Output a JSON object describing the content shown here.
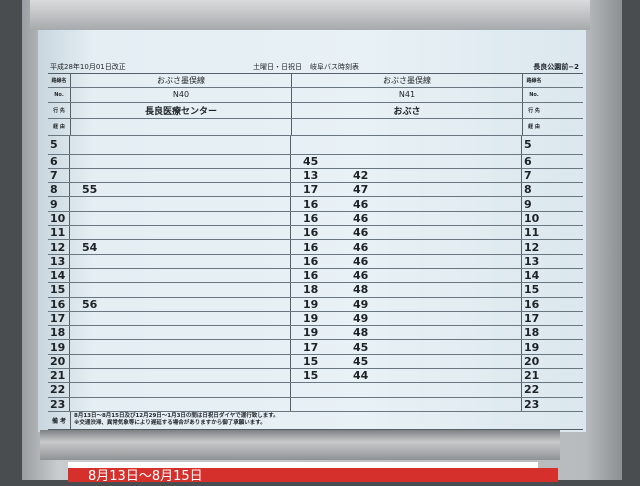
{
  "header": {
    "revision": "平成28年10月01日改正",
    "day_type": "土曜日・日祝日",
    "title": "岐阜バス時刻表",
    "stop": "長良公園前−2"
  },
  "labels": {
    "route": "路線名",
    "no": "No.",
    "dest": "行 先",
    "via": "経 由",
    "note": "備 考"
  },
  "left": {
    "route": "おぶさ墨俣線",
    "no": "N40",
    "dest": "長良医療センター"
  },
  "right": {
    "route": "おぶさ墨俣線",
    "no": "N41",
    "dest": "おぶさ"
  },
  "hours": [
    {
      "h": "5",
      "left": [],
      "right": []
    },
    {
      "h": "6",
      "left": [],
      "right": [
        "45"
      ]
    },
    {
      "h": "7",
      "left": [],
      "right": [
        "13",
        "42"
      ]
    },
    {
      "h": "8",
      "left": [
        "55"
      ],
      "right": [
        "17",
        "47"
      ]
    },
    {
      "h": "9",
      "left": [],
      "right": [
        "16",
        "46"
      ]
    },
    {
      "h": "10",
      "left": [],
      "right": [
        "16",
        "46"
      ]
    },
    {
      "h": "11",
      "left": [],
      "right": [
        "16",
        "46"
      ]
    },
    {
      "h": "12",
      "left": [
        "54"
      ],
      "right": [
        "16",
        "46"
      ]
    },
    {
      "h": "13",
      "left": [],
      "right": [
        "16",
        "46"
      ]
    },
    {
      "h": "14",
      "left": [],
      "right": [
        "16",
        "46"
      ]
    },
    {
      "h": "15",
      "left": [],
      "right": [
        "18",
        "48"
      ]
    },
    {
      "h": "16",
      "left": [
        "56"
      ],
      "right": [
        "19",
        "49"
      ]
    },
    {
      "h": "17",
      "left": [],
      "right": [
        "19",
        "49"
      ]
    },
    {
      "h": "18",
      "left": [],
      "right": [
        "19",
        "48"
      ]
    },
    {
      "h": "19",
      "left": [],
      "right": [
        "17",
        "45"
      ]
    },
    {
      "h": "20",
      "left": [],
      "right": [
        "15",
        "45"
      ]
    },
    {
      "h": "21",
      "left": [],
      "right": [
        "15",
        "44"
      ]
    },
    {
      "h": "22",
      "left": [],
      "right": []
    },
    {
      "h": "23",
      "left": [],
      "right": []
    }
  ],
  "notes": [
    "8月13日〜8月15日及び12月29日〜1月3日の間は日祝日ダイヤで運行致します。",
    "※交通渋滞、異常気象等により遅延する場合がありますから御了承願います。"
  ],
  "sign": "8月13日〜8月15日"
}
